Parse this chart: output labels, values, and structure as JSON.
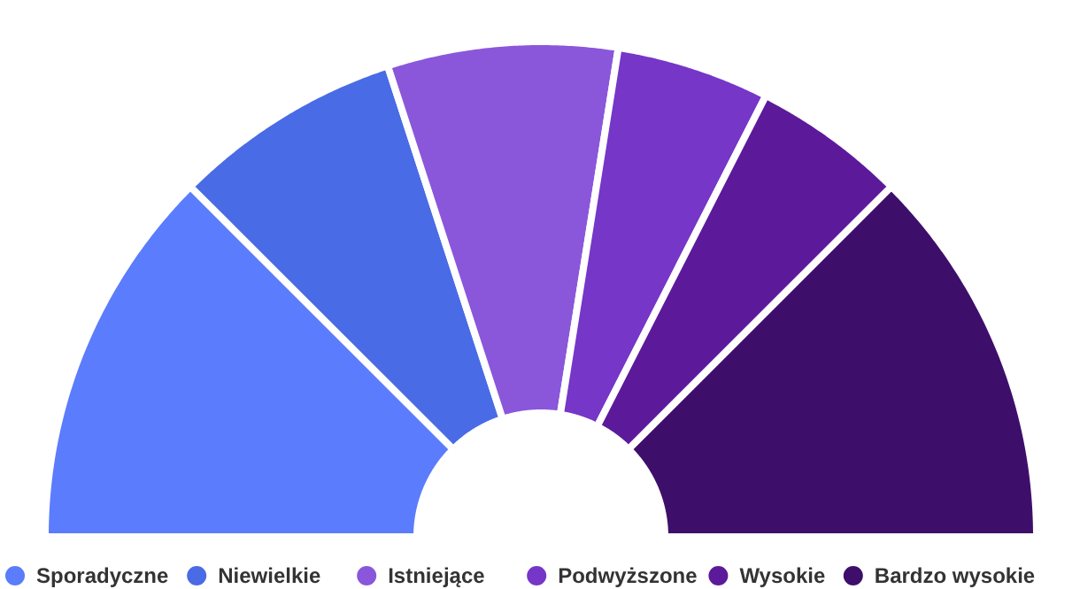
{
  "chart_data": {
    "type": "donut",
    "categories": [
      "Sporadyczne",
      "Niewielkie",
      "Istniejące",
      "Podwyższone",
      "Wysokie",
      "Bardzo wysokie"
    ],
    "values": [
      25,
      15,
      15,
      10,
      10,
      25
    ],
    "colors": [
      "#5b7cfc",
      "#4a6be6",
      "#8a57db",
      "#7636c8",
      "#5c1a9b",
      "#3e0f6a"
    ],
    "legend": "bottom"
  }
}
